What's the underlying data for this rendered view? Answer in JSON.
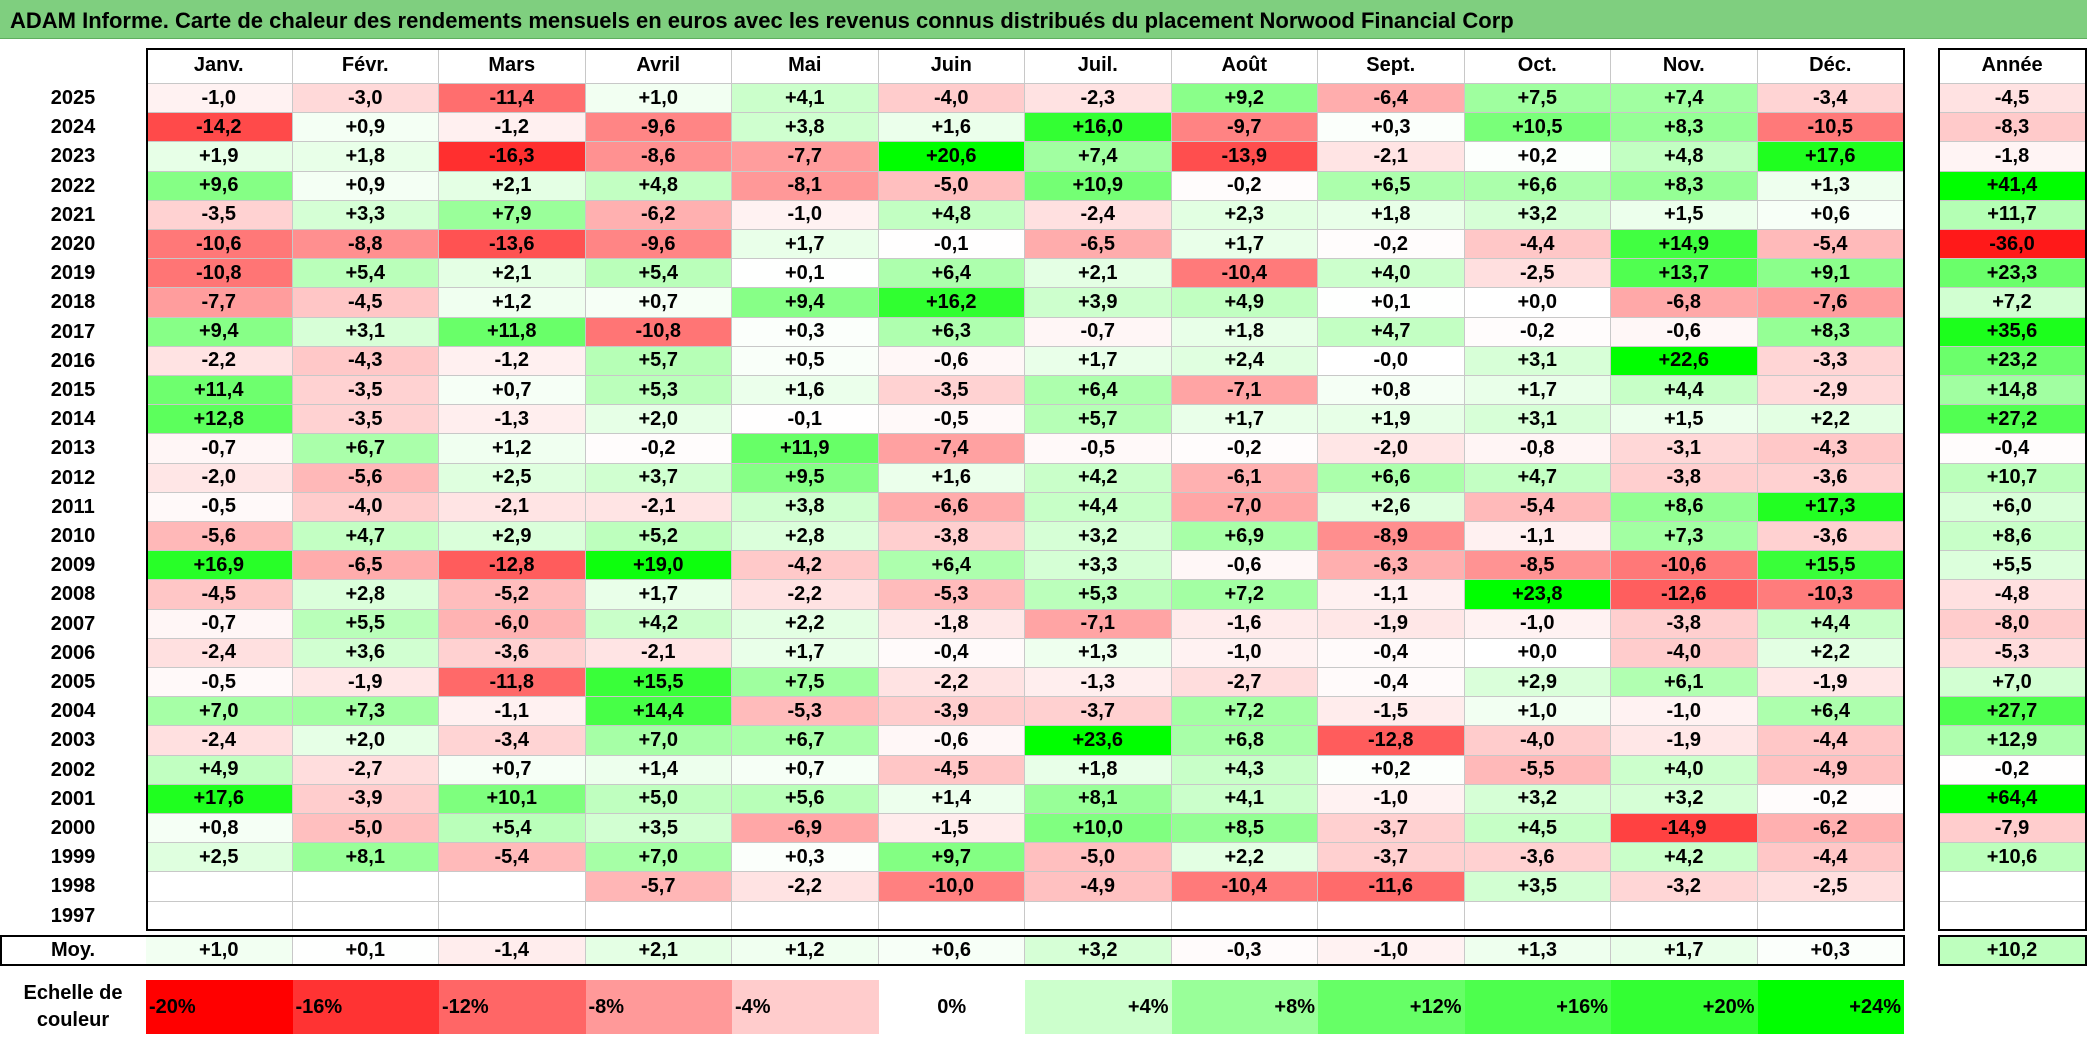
{
  "title": "ADAM Informe. Carte de chaleur des rendements mensuels en euros avec les revenus connus distribués du placement Norwood Financial Corp",
  "chart_data": {
    "type": "heatmap",
    "columns": [
      "Janv.",
      "Févr.",
      "Mars",
      "Avril",
      "Mai",
      "Juin",
      "Juil.",
      "Août",
      "Sept.",
      "Oct.",
      "Nov.",
      "Déc."
    ],
    "annual_header": "Année",
    "rows": [
      {
        "year": "2025",
        "values": [
          "-1,0",
          "-3,0",
          "-11,4",
          "+1,0",
          "+4,1",
          "-4,0",
          "-2,3",
          "+9,2",
          "-6,4",
          "+7,5",
          "+7,4",
          "-3,4"
        ],
        "annual": "-4,5"
      },
      {
        "year": "2024",
        "values": [
          "-14,2",
          "+0,9",
          "-1,2",
          "-9,6",
          "+3,8",
          "+1,6",
          "+16,0",
          "-9,7",
          "+0,3",
          "+10,5",
          "+8,3",
          "-10,5"
        ],
        "annual": "-8,3"
      },
      {
        "year": "2023",
        "values": [
          "+1,9",
          "+1,8",
          "-16,3",
          "-8,6",
          "-7,7",
          "+20,6",
          "+7,4",
          "-13,9",
          "-2,1",
          "+0,2",
          "+4,8",
          "+17,6"
        ],
        "annual": "-1,8"
      },
      {
        "year": "2022",
        "values": [
          "+9,6",
          "+0,9",
          "+2,1",
          "+4,8",
          "-8,1",
          "-5,0",
          "+10,9",
          "-0,2",
          "+6,5",
          "+6,6",
          "+8,3",
          "+1,3"
        ],
        "annual": "+41,4"
      },
      {
        "year": "2021",
        "values": [
          "-3,5",
          "+3,3",
          "+7,9",
          "-6,2",
          "-1,0",
          "+4,8",
          "-2,4",
          "+2,3",
          "+1,8",
          "+3,2",
          "+1,5",
          "+0,6"
        ],
        "annual": "+11,7"
      },
      {
        "year": "2020",
        "values": [
          "-10,6",
          "-8,8",
          "-13,6",
          "-9,6",
          "+1,7",
          "-0,1",
          "-6,5",
          "+1,7",
          "-0,2",
          "-4,4",
          "+14,9",
          "-5,4"
        ],
        "annual": "-36,0"
      },
      {
        "year": "2019",
        "values": [
          "-10,8",
          "+5,4",
          "+2,1",
          "+5,4",
          "+0,1",
          "+6,4",
          "+2,1",
          "-10,4",
          "+4,0",
          "-2,5",
          "+13,7",
          "+9,1"
        ],
        "annual": "+23,3"
      },
      {
        "year": "2018",
        "values": [
          "-7,7",
          "-4,5",
          "+1,2",
          "+0,7",
          "+9,4",
          "+16,2",
          "+3,9",
          "+4,9",
          "+0,1",
          "+0,0",
          "-6,8",
          "-7,6"
        ],
        "annual": "+7,2"
      },
      {
        "year": "2017",
        "values": [
          "+9,4",
          "+3,1",
          "+11,8",
          "-10,8",
          "+0,3",
          "+6,3",
          "-0,7",
          "+1,8",
          "+4,7",
          "-0,2",
          "-0,6",
          "+8,3"
        ],
        "annual": "+35,6"
      },
      {
        "year": "2016",
        "values": [
          "-2,2",
          "-4,3",
          "-1,2",
          "+5,7",
          "+0,5",
          "-0,6",
          "+1,7",
          "+2,4",
          "-0,0",
          "+3,1",
          "+22,6",
          "-3,3"
        ],
        "annual": "+23,2"
      },
      {
        "year": "2015",
        "values": [
          "+11,4",
          "-3,5",
          "+0,7",
          "+5,3",
          "+1,6",
          "-3,5",
          "+6,4",
          "-7,1",
          "+0,8",
          "+1,7",
          "+4,4",
          "-2,9"
        ],
        "annual": "+14,8"
      },
      {
        "year": "2014",
        "values": [
          "+12,8",
          "-3,5",
          "-1,3",
          "+2,0",
          "-0,1",
          "-0,5",
          "+5,7",
          "+1,7",
          "+1,9",
          "+3,1",
          "+1,5",
          "+2,2"
        ],
        "annual": "+27,2"
      },
      {
        "year": "2013",
        "values": [
          "-0,7",
          "+6,7",
          "+1,2",
          "-0,2",
          "+11,9",
          "-7,4",
          "-0,5",
          "-0,2",
          "-2,0",
          "-0,8",
          "-3,1",
          "-4,3"
        ],
        "annual": "-0,4"
      },
      {
        "year": "2012",
        "values": [
          "-2,0",
          "-5,6",
          "+2,5",
          "+3,7",
          "+9,5",
          "+1,6",
          "+4,2",
          "-6,1",
          "+6,6",
          "+4,7",
          "-3,8",
          "-3,6"
        ],
        "annual": "+10,7"
      },
      {
        "year": "2011",
        "values": [
          "-0,5",
          "-4,0",
          "-2,1",
          "-2,1",
          "+3,8",
          "-6,6",
          "+4,4",
          "-7,0",
          "+2,6",
          "-5,4",
          "+8,6",
          "+17,3"
        ],
        "annual": "+6,0"
      },
      {
        "year": "2010",
        "values": [
          "-5,6",
          "+4,7",
          "+2,9",
          "+5,2",
          "+2,8",
          "-3,8",
          "+3,2",
          "+6,9",
          "-8,9",
          "-1,1",
          "+7,3",
          "-3,6"
        ],
        "annual": "+8,6"
      },
      {
        "year": "2009",
        "values": [
          "+16,9",
          "-6,5",
          "-12,8",
          "+19,0",
          "-4,2",
          "+6,4",
          "+3,3",
          "-0,6",
          "-6,3",
          "-8,5",
          "-10,6",
          "+15,5"
        ],
        "annual": "+5,5"
      },
      {
        "year": "2008",
        "values": [
          "-4,5",
          "+2,8",
          "-5,2",
          "+1,7",
          "-2,2",
          "-5,3",
          "+5,3",
          "+7,2",
          "-1,1",
          "+23,8",
          "-12,6",
          "-10,3"
        ],
        "annual": "-4,8"
      },
      {
        "year": "2007",
        "values": [
          "-0,7",
          "+5,5",
          "-6,0",
          "+4,2",
          "+2,2",
          "-1,8",
          "-7,1",
          "-1,6",
          "-1,9",
          "-1,0",
          "-3,8",
          "+4,4"
        ],
        "annual": "-8,0"
      },
      {
        "year": "2006",
        "values": [
          "-2,4",
          "+3,6",
          "-3,6",
          "-2,1",
          "+1,7",
          "-0,4",
          "+1,3",
          "-1,0",
          "-0,4",
          "+0,0",
          "-4,0",
          "+2,2"
        ],
        "annual": "-5,3"
      },
      {
        "year": "2005",
        "values": [
          "-0,5",
          "-1,9",
          "-11,8",
          "+15,5",
          "+7,5",
          "-2,2",
          "-1,3",
          "-2,7",
          "-0,4",
          "+2,9",
          "+6,1",
          "-1,9"
        ],
        "annual": "+7,0"
      },
      {
        "year": "2004",
        "values": [
          "+7,0",
          "+7,3",
          "-1,1",
          "+14,4",
          "-5,3",
          "-3,9",
          "-3,7",
          "+7,2",
          "-1,5",
          "+1,0",
          "-1,0",
          "+6,4"
        ],
        "annual": "+27,7"
      },
      {
        "year": "2003",
        "values": [
          "-2,4",
          "+2,0",
          "-3,4",
          "+7,0",
          "+6,7",
          "-0,6",
          "+23,6",
          "+6,8",
          "-12,8",
          "-4,0",
          "-1,9",
          "-4,4"
        ],
        "annual": "+12,9"
      },
      {
        "year": "2002",
        "values": [
          "+4,9",
          "-2,7",
          "+0,7",
          "+1,4",
          "+0,7",
          "-4,5",
          "+1,8",
          "+4,3",
          "+0,2",
          "-5,5",
          "+4,0",
          "-4,9"
        ],
        "annual": "-0,2"
      },
      {
        "year": "2001",
        "values": [
          "+17,6",
          "-3,9",
          "+10,1",
          "+5,0",
          "+5,6",
          "+1,4",
          "+8,1",
          "+4,1",
          "-1,0",
          "+3,2",
          "+3,2",
          "-0,2"
        ],
        "annual": "+64,4"
      },
      {
        "year": "2000",
        "values": [
          "+0,8",
          "-5,0",
          "+5,4",
          "+3,5",
          "-6,9",
          "-1,5",
          "+10,0",
          "+8,5",
          "-3,7",
          "+4,5",
          "-14,9",
          "-6,2"
        ],
        "annual": "-7,9"
      },
      {
        "year": "1999",
        "values": [
          "+2,5",
          "+8,1",
          "-5,4",
          "+7,0",
          "+0,3",
          "+9,7",
          "-5,0",
          "+2,2",
          "-3,7",
          "-3,6",
          "+4,2",
          "-4,4"
        ],
        "annual": "+10,6"
      },
      {
        "year": "1998",
        "values": [
          "",
          "",
          "",
          "-5,7",
          "-2,2",
          "-10,0",
          "-4,9",
          "-10,4",
          "-11,6",
          "+3,5",
          "-3,2",
          "-2,5"
        ],
        "annual": ""
      },
      {
        "year": "1997",
        "values": [
          "",
          "",
          "",
          "",
          "",
          "",
          "",
          "",
          "",
          "",
          "",
          ""
        ],
        "annual": ""
      }
    ],
    "average": {
      "label": "Moy.",
      "values": [
        "+1,0",
        "+0,1",
        "-1,4",
        "+2,1",
        "+1,2",
        "+0,6",
        "+3,2",
        "-0,3",
        "-1,0",
        "+1,3",
        "+1,7",
        "+0,3"
      ],
      "annual": "+10,2"
    },
    "color_scale": {
      "label": "Echelle de couleur",
      "steps": [
        {
          "label": "-20%",
          "value": -20,
          "color": "#ff0000"
        },
        {
          "label": "-16%",
          "value": -16,
          "color": "#ff3333"
        },
        {
          "label": "-12%",
          "value": -12,
          "color": "#ff6666"
        },
        {
          "label": "-8%",
          "value": -8,
          "color": "#ff9999"
        },
        {
          "label": "-4%",
          "value": -4,
          "color": "#ffcccc"
        },
        {
          "label": "0%",
          "value": 0,
          "color": "#ffffff"
        },
        {
          "label": "+4%",
          "value": 4,
          "color": "#ccffcc"
        },
        {
          "label": "+8%",
          "value": 8,
          "color": "#99ff99"
        },
        {
          "label": "+12%",
          "value": 12,
          "color": "#66ff66"
        },
        {
          "label": "+16%",
          "value": 16,
          "color": "#4dff4d"
        },
        {
          "label": "+20%",
          "value": 20,
          "color": "#33ff33"
        },
        {
          "label": "+24%",
          "value": 24,
          "color": "#00ff00"
        }
      ]
    }
  }
}
